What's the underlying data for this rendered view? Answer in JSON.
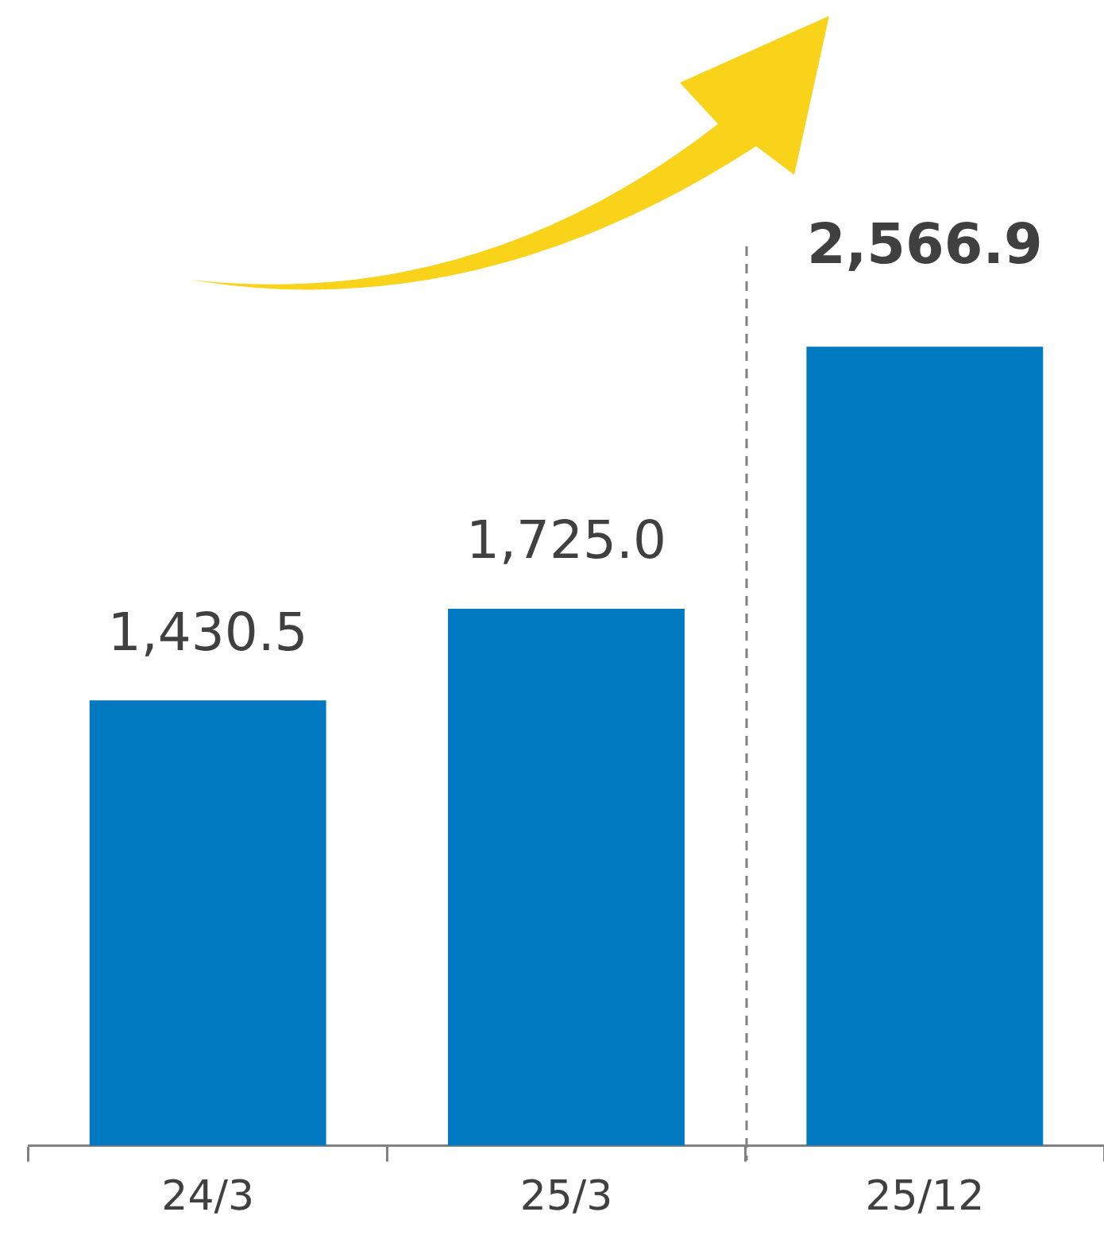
{
  "chart_data": {
    "type": "bar",
    "categories": [
      "24/3",
      "25/3",
      "25/12"
    ],
    "values": [
      1430.5,
      1725.0,
      2566.9
    ],
    "value_labels": [
      "1,430.5",
      "1,725.0",
      "2,566.9"
    ],
    "color": "#0079c1",
    "grid": false,
    "legend": false
  }
}
